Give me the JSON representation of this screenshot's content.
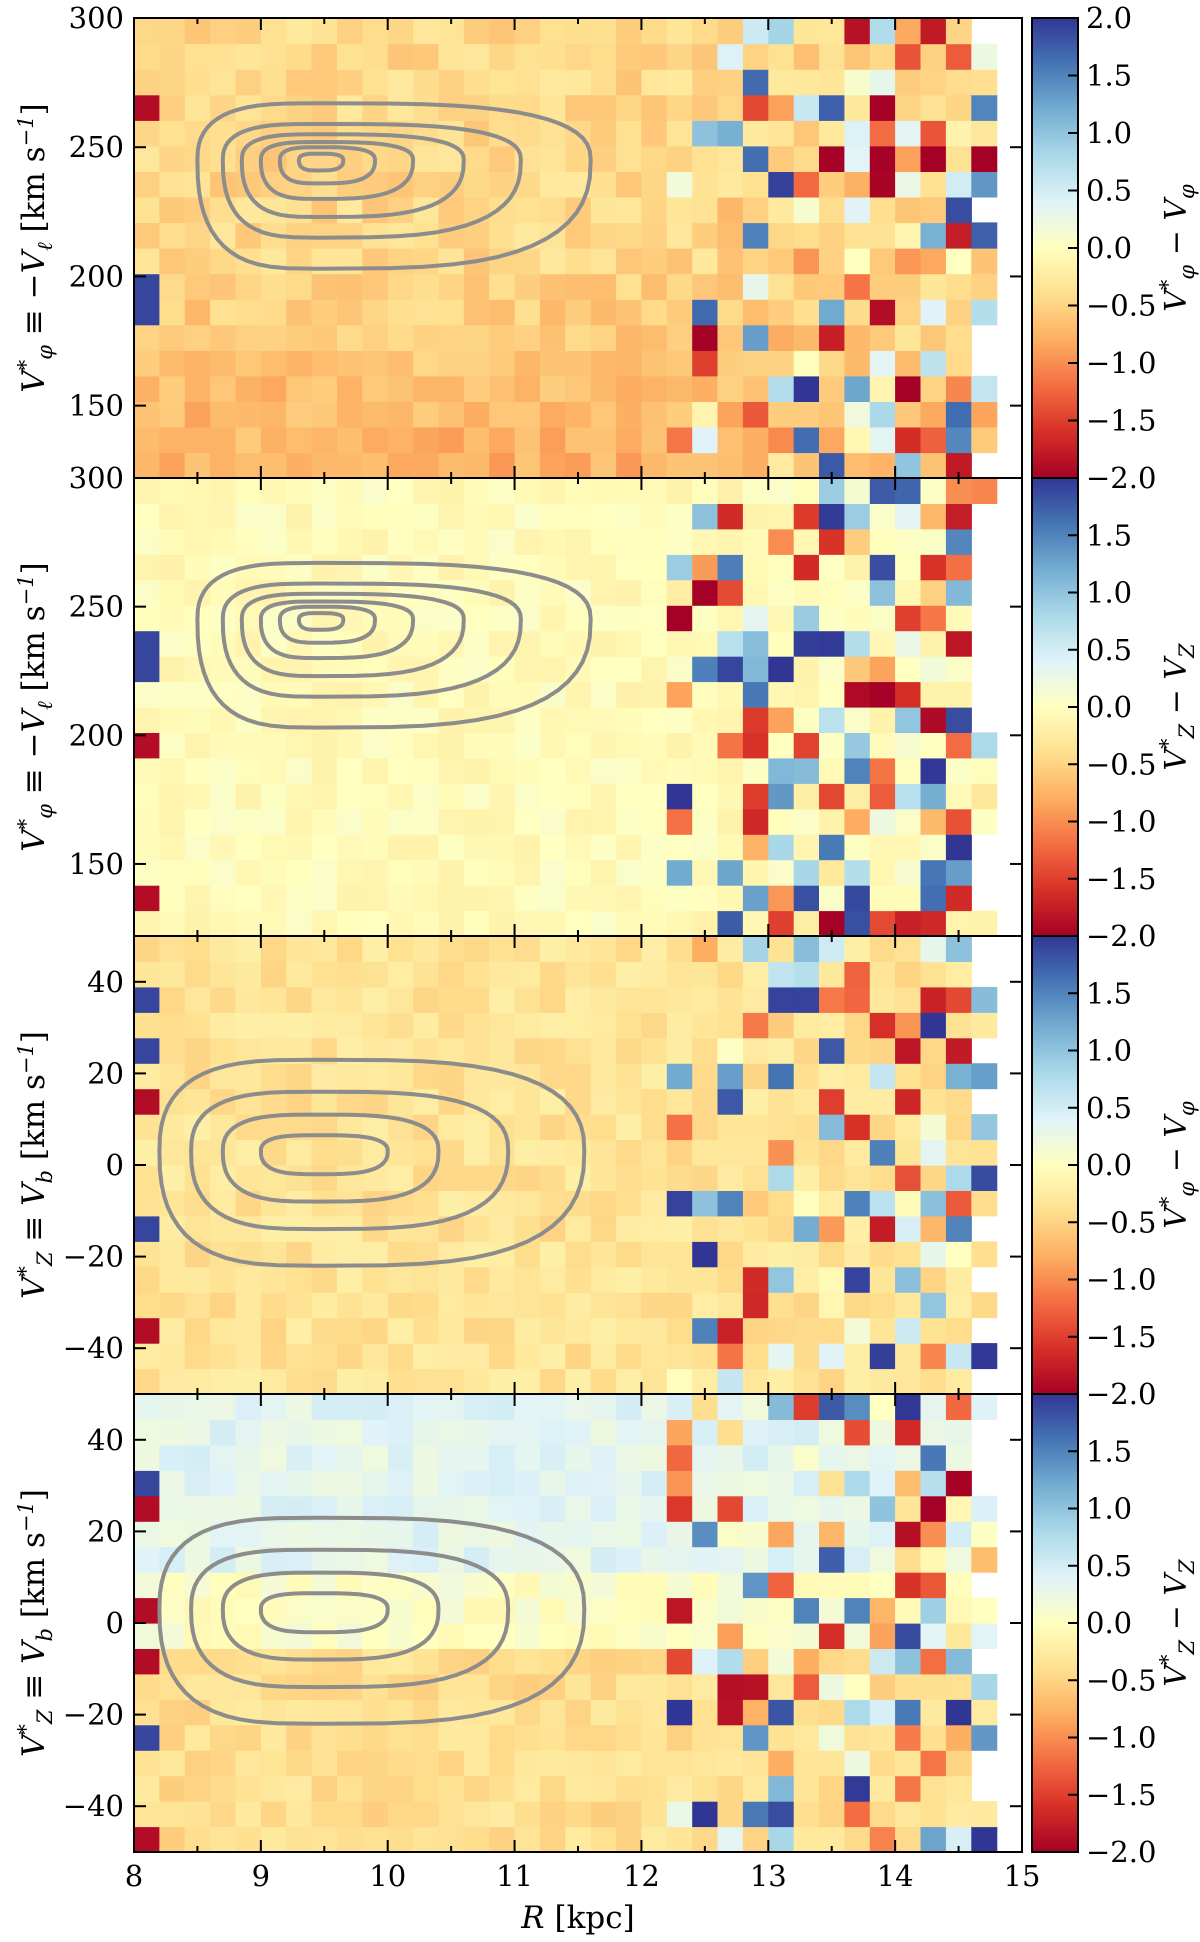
{
  "chart_data": [
    {
      "type": "heatmap",
      "panel": "top",
      "title": "",
      "ylabel": "V*_φ ≡ −V_ℓ [km s⁻¹]",
      "ylabel_parts": {
        "main": "V",
        "sup": "*",
        "sub": "φ",
        "eq": " ≡ −V",
        "sub2": "ℓ",
        "unit": " [km s",
        "unit_sup": "−1",
        "close": "]"
      },
      "xlim": [
        8,
        15
      ],
      "ylim": [
        122,
        300
      ],
      "yticks": [
        {
          "v": 150,
          "label": "150"
        },
        {
          "v": 200,
          "label": "200"
        },
        {
          "v": 250,
          "label": "250"
        },
        {
          "v": 300,
          "label": "300"
        }
      ],
      "colorbar": {
        "label": "V*_φ − V_φ",
        "label_parts": {
          "main": "V",
          "sup": "*",
          "sub": "φ",
          "rest": " − V",
          "sub2": "φ"
        },
        "range": [
          -2.0,
          2.0
        ],
        "ticks": [
          {
            "v": 2.0,
            "label": "2.0"
          },
          {
            "v": 1.5,
            "label": "1.5"
          },
          {
            "v": 1.0,
            "label": "1.0"
          },
          {
            "v": 0.5,
            "label": "0.5"
          },
          {
            "v": 0.0,
            "label": "0.0"
          },
          {
            "v": -0.5,
            "label": "−0.5"
          },
          {
            "v": -1.0,
            "label": "−1.0"
          },
          {
            "v": -1.5,
            "label": "−1.5"
          },
          {
            "v": -2.0,
            "label": "−2.0"
          }
        ]
      },
      "background_pattern": "negative_offset",
      "contours": {
        "center": [
          9.45,
          245
        ],
        "rx_left": [
          0.95,
          0.75,
          0.6,
          0.45,
          0.3,
          0.15
        ],
        "rx_right": [
          2.15,
          1.6,
          1.15,
          0.75,
          0.45,
          0.2
        ],
        "ry_top": [
          22,
          14,
          10,
          7,
          5,
          2.5
        ],
        "ry_bottom": [
          42,
          30,
          22,
          15,
          9,
          4
        ]
      }
    },
    {
      "type": "heatmap",
      "panel": "second",
      "title": "",
      "ylabel": "V*_φ ≡ −V_ℓ [km s⁻¹]",
      "ylabel_parts": {
        "main": "V",
        "sup": "*",
        "sub": "φ",
        "eq": " ≡ −V",
        "sub2": "ℓ",
        "unit": " [km s",
        "unit_sup": "−1",
        "close": "]"
      },
      "xlim": [
        8,
        15
      ],
      "ylim": [
        122,
        300
      ],
      "yticks": [
        {
          "v": 150,
          "label": "150"
        },
        {
          "v": 200,
          "label": "200"
        },
        {
          "v": 250,
          "label": "250"
        },
        {
          "v": 300,
          "label": "300"
        }
      ],
      "colorbar": {
        "label": "V*_Z − V_Z",
        "label_parts": {
          "main": "V",
          "sup": "*",
          "sub": "Z",
          "rest": " − V",
          "sub2": "Z"
        },
        "range": [
          -2.0,
          2.0
        ],
        "ticks": [
          {
            "v": 1.5,
            "label": "1.5"
          },
          {
            "v": 1.0,
            "label": "1.0"
          },
          {
            "v": 0.5,
            "label": "0.5"
          },
          {
            "v": 0.0,
            "label": "0.0"
          },
          {
            "v": -0.5,
            "label": "−0.5"
          },
          {
            "v": -1.0,
            "label": "−1.0"
          },
          {
            "v": -1.5,
            "label": "−1.5"
          },
          {
            "v": -2.0,
            "label": "−2.0"
          }
        ]
      },
      "background_pattern": "near_zero",
      "contours": {
        "center": [
          9.45,
          245
        ],
        "rx_left": [
          0.95,
          0.75,
          0.6,
          0.45,
          0.3,
          0.15
        ],
        "rx_right": [
          2.15,
          1.6,
          1.15,
          0.75,
          0.45,
          0.2
        ],
        "ry_top": [
          22,
          14,
          10,
          7,
          5,
          2.5
        ],
        "ry_bottom": [
          42,
          30,
          22,
          15,
          9,
          4
        ]
      }
    },
    {
      "type": "heatmap",
      "panel": "third",
      "title": "",
      "ylabel": "V*_Z ≡ V_b [km s⁻¹]",
      "ylabel_parts": {
        "main": "V",
        "sup": "*",
        "sub": "Z",
        "eq": " ≡ V",
        "sub2": "b",
        "unit": " [km s",
        "unit_sup": "−1",
        "close": "]"
      },
      "xlim": [
        8,
        15
      ],
      "ylim": [
        -50,
        50
      ],
      "yticks": [
        {
          "v": -40,
          "label": "−40"
        },
        {
          "v": -20,
          "label": "−20"
        },
        {
          "v": 0,
          "label": "0"
        },
        {
          "v": 20,
          "label": "20"
        },
        {
          "v": 40,
          "label": "40"
        }
      ],
      "colorbar": {
        "label": "V*_φ − V_φ",
        "label_parts": {
          "main": "V",
          "sup": "*",
          "sub": "φ",
          "rest": " − V",
          "sub2": "φ"
        },
        "range": [
          -2.0,
          2.0
        ],
        "ticks": [
          {
            "v": 1.5,
            "label": "1.5"
          },
          {
            "v": 1.0,
            "label": "1.0"
          },
          {
            "v": 0.5,
            "label": "0.5"
          },
          {
            "v": 0.0,
            "label": "0.0"
          },
          {
            "v": -0.5,
            "label": "−0.5"
          },
          {
            "v": -1.0,
            "label": "−1.0"
          },
          {
            "v": -1.5,
            "label": "−1.5"
          },
          {
            "v": -2.0,
            "label": "−2.0"
          }
        ]
      },
      "background_pattern": "mild_negative",
      "contours": {
        "center": [
          9.45,
          3
        ],
        "rx_left": [
          1.25,
          1.0,
          0.75,
          0.45
        ],
        "rx_right": [
          2.1,
          1.5,
          0.95,
          0.55
        ],
        "ry_top": [
          20,
          13,
          8,
          3.5
        ],
        "ry_bottom": [
          25,
          17,
          11,
          5
        ]
      }
    },
    {
      "type": "heatmap",
      "panel": "bottom",
      "title": "",
      "xlabel": "R [kpc]",
      "ylabel": "V*_Z ≡ V_b [km s⁻¹]",
      "ylabel_parts": {
        "main": "V",
        "sup": "*",
        "sub": "Z",
        "eq": " ≡ V",
        "sub2": "b",
        "unit": " [km s",
        "unit_sup": "−1",
        "close": "]"
      },
      "xlim": [
        8,
        15
      ],
      "xticks": [
        {
          "v": 8,
          "label": "8"
        },
        {
          "v": 9,
          "label": "9"
        },
        {
          "v": 10,
          "label": "10"
        },
        {
          "v": 11,
          "label": "11"
        },
        {
          "v": 12,
          "label": "12"
        },
        {
          "v": 13,
          "label": "13"
        },
        {
          "v": 14,
          "label": "14"
        },
        {
          "v": 15,
          "label": "15"
        }
      ],
      "ylim": [
        -50,
        50
      ],
      "yticks": [
        {
          "v": -40,
          "label": "−40"
        },
        {
          "v": -20,
          "label": "−20"
        },
        {
          "v": 0,
          "label": "0"
        },
        {
          "v": 20,
          "label": "20"
        },
        {
          "v": 40,
          "label": "40"
        }
      ],
      "colorbar": {
        "label": "V*_Z − V_Z",
        "label_parts": {
          "main": "V",
          "sup": "*",
          "sub": "Z",
          "rest": " − V",
          "sub2": "Z"
        },
        "range": [
          -2.0,
          2.0
        ],
        "ticks": [
          {
            "v": 1.5,
            "label": "1.5"
          },
          {
            "v": 1.0,
            "label": "1.0"
          },
          {
            "v": 0.5,
            "label": "0.5"
          },
          {
            "v": 0.0,
            "label": "0.0"
          },
          {
            "v": -0.5,
            "label": "−0.5"
          },
          {
            "v": -1.0,
            "label": "−1.0"
          },
          {
            "v": -1.5,
            "label": "−1.5"
          },
          {
            "v": -2.0,
            "label": "−2.0"
          }
        ]
      },
      "background_pattern": "gradient_positive_top",
      "contours": {
        "center": [
          9.45,
          3
        ],
        "rx_left": [
          1.25,
          1.0,
          0.75,
          0.45
        ],
        "rx_right": [
          2.1,
          1.5,
          0.95,
          0.55
        ],
        "ry_top": [
          20,
          13,
          8,
          3.5
        ],
        "ry_bottom": [
          25,
          17,
          11,
          5
        ]
      }
    }
  ],
  "colors": {
    "contour": "#8c8c8c",
    "axis": "#000000",
    "colormap": [
      "#313695",
      "#4575b4",
      "#74add1",
      "#abd9e9",
      "#e0f3f8",
      "#ffffbf",
      "#fee090",
      "#fdae61",
      "#f46d43",
      "#d73027",
      "#a50026"
    ]
  }
}
